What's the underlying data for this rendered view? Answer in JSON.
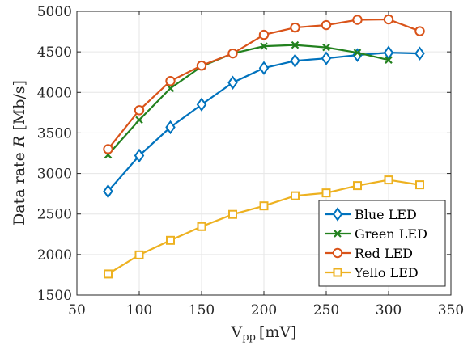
{
  "chart_data": {
    "type": "line",
    "xlabel_main": "V",
    "xlabel_sub": "pp",
    "xlabel_unit": "[mV]",
    "ylabel_prefix": "Data rate ",
    "ylabel_var": "R",
    "ylabel_unit": " [Mb/s]",
    "xlim": [
      50,
      350
    ],
    "ylim": [
      1500,
      5000
    ],
    "xticks": [
      50,
      100,
      150,
      200,
      250,
      300,
      350
    ],
    "yticks": [
      1500,
      2000,
      2500,
      3000,
      3500,
      4000,
      4500,
      5000
    ],
    "grid": true,
    "legend_position": "bottom-right",
    "x": [
      75,
      100,
      125,
      150,
      175,
      200,
      225,
      250,
      275,
      300,
      325
    ],
    "series": [
      {
        "name": "Blue LED",
        "color": "#0072BD",
        "marker": "diamond",
        "values": [
          2780,
          3220,
          3570,
          3850,
          4120,
          4300,
          4390,
          4420,
          4460,
          4490,
          4480
        ]
      },
      {
        "name": "Green LED",
        "color": "#22811E",
        "marker": "x",
        "values": [
          3230,
          3660,
          4050,
          4320,
          4480,
          4570,
          4585,
          4555,
          4490,
          4400,
          null
        ]
      },
      {
        "name": "Red LED",
        "color": "#D95319",
        "marker": "circle",
        "values": [
          3300,
          3780,
          4140,
          4330,
          4480,
          4710,
          4800,
          4830,
          4895,
          4900,
          4755
        ]
      },
      {
        "name": "Yello LED",
        "color": "#EDB120",
        "marker": "square",
        "values": [
          1760,
          1995,
          2175,
          2345,
          2495,
          2600,
          2725,
          2760,
          2850,
          2920,
          2860
        ]
      }
    ]
  }
}
